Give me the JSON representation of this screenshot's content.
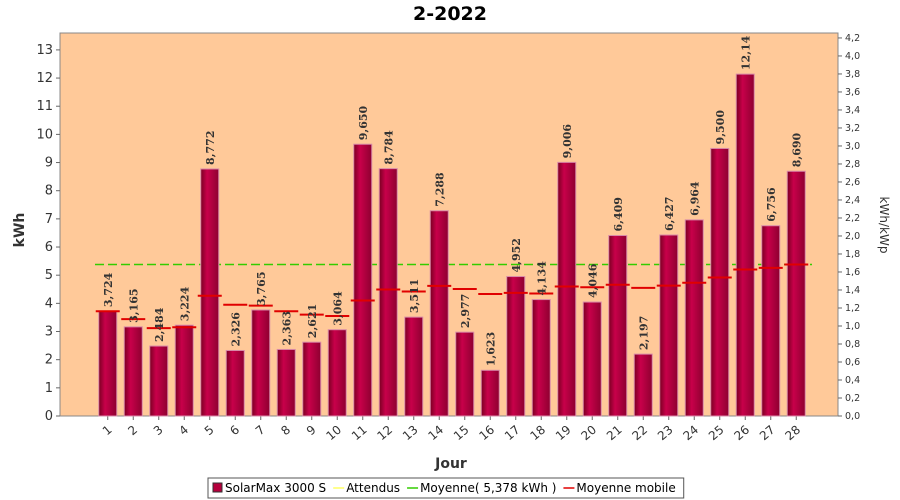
{
  "chart_data": {
    "type": "bar",
    "title": "2-2022",
    "x_label": "Jour",
    "y_label": "kWh",
    "y2_label": "kWh/kWp",
    "categories": [
      "1",
      "2",
      "3",
      "4",
      "5",
      "6",
      "7",
      "8",
      "9",
      "10",
      "11",
      "12",
      "13",
      "14",
      "15",
      "16",
      "17",
      "18",
      "19",
      "20",
      "21",
      "22",
      "23",
      "24",
      "25",
      "26",
      "27",
      "28"
    ],
    "series": [
      {
        "name": "SolarMax 3000 S",
        "color": "#b5003c",
        "values": [
          3.724,
          3.165,
          2.484,
          3.224,
          8.772,
          2.326,
          3.765,
          2.363,
          2.621,
          3.064,
          9.65,
          8.784,
          3.511,
          7.288,
          2.977,
          1.623,
          4.952,
          4.134,
          9.006,
          4.046,
          6.409,
          2.197,
          6.427,
          6.964,
          9.5,
          12.14,
          6.756,
          8.69
        ],
        "value_labels": [
          "3,724",
          "3,165",
          "2,484",
          "3,224",
          "8,772",
          "2,326",
          "3,765",
          "2,363",
          "2,621",
          "3,064",
          "9,650",
          "8,784",
          "3,511",
          "7,288",
          "2,977",
          "1,623",
          "4,952",
          "4,134",
          "9,006",
          "4,046",
          "6,409",
          "2,197",
          "6,427",
          "6,964",
          "9,500",
          "12,14",
          "6,756",
          "8,690"
        ]
      },
      {
        "name": "Moyenne mobile",
        "color": "#e00000",
        "values": [
          3.72,
          3.44,
          3.12,
          3.15,
          4.27,
          3.95,
          3.92,
          3.72,
          3.6,
          3.55,
          4.1,
          4.49,
          4.42,
          4.62,
          4.51,
          4.33,
          4.37,
          4.35,
          4.6,
          4.57,
          4.66,
          4.55,
          4.63,
          4.73,
          4.92,
          5.2,
          5.26,
          5.38
        ]
      }
    ],
    "average": {
      "name": "Moyenne( 5,378 kWh )",
      "color": "#33cc00",
      "value": 5.378
    },
    "expected": {
      "name": "Attendus",
      "color": "#ffff66"
    },
    "legend_order": [
      "SolarMax 3000 S",
      "Attendus",
      "Moyenne( 5,378 kWh )",
      "Moyenne mobile"
    ],
    "ylim": [
      0,
      13.6
    ],
    "yticks": [
      0,
      1,
      2,
      3,
      4,
      5,
      6,
      7,
      8,
      9,
      10,
      11,
      12,
      13
    ],
    "y2lim": [
      0,
      4.255
    ],
    "y2ticks": [
      {
        "value": 0,
        "label": "0,0"
      },
      {
        "value": 0.2,
        "label": "0,2"
      },
      {
        "value": 0.4,
        "label": "0,4"
      },
      {
        "value": 0.6,
        "label": "0,6"
      },
      {
        "value": 0.8,
        "label": "0,8"
      },
      {
        "value": 1,
        "label": "1,0"
      },
      {
        "value": 1.2,
        "label": "1,2"
      },
      {
        "value": 1.4,
        "label": "1,4"
      },
      {
        "value": 1.6,
        "label": "1,6"
      },
      {
        "value": 1.8,
        "label": "1,8"
      },
      {
        "value": 2,
        "label": "2,0"
      },
      {
        "value": 2.2,
        "label": "2,2"
      },
      {
        "value": 2.4,
        "label": "2,4"
      },
      {
        "value": 2.6,
        "label": "2,6"
      },
      {
        "value": 2.8,
        "label": "2,8"
      },
      {
        "value": 3,
        "label": "3,0"
      },
      {
        "value": 3.2,
        "label": "3,2"
      },
      {
        "value": 3.4,
        "label": "3,4"
      },
      {
        "value": 3.6,
        "label": "3,6"
      },
      {
        "value": 3.8,
        "label": "3,8"
      },
      {
        "value": 4,
        "label": "4,0"
      },
      {
        "value": 4.2,
        "label": "4,2"
      }
    ],
    "plot_background": "#ffc999"
  }
}
